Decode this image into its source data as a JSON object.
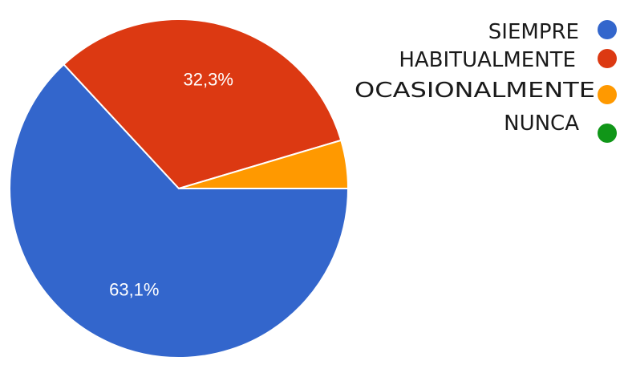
{
  "chart_data": {
    "type": "pie",
    "categories": [
      "SIEMPRE",
      "HABITUALMENTE",
      "OCASIONALMENTE",
      "NUNCA"
    ],
    "values": [
      63.1,
      32.3,
      4.6,
      0.0
    ],
    "data_labels": [
      "63,1%",
      "32,3%",
      "",
      ""
    ],
    "colors": [
      "#3366cc",
      "#dc3912",
      "#ff9900",
      "#109618"
    ],
    "legend": {
      "position": "right",
      "items": [
        {
          "label": "SIEMPRE",
          "color": "#3366cc"
        },
        {
          "label": "HABITUALMENTE",
          "color": "#dc3912"
        },
        {
          "label": "OCASIONALMENTE",
          "color": "#ff9900"
        },
        {
          "label": "NUNCA",
          "color": "#109618"
        }
      ]
    }
  }
}
